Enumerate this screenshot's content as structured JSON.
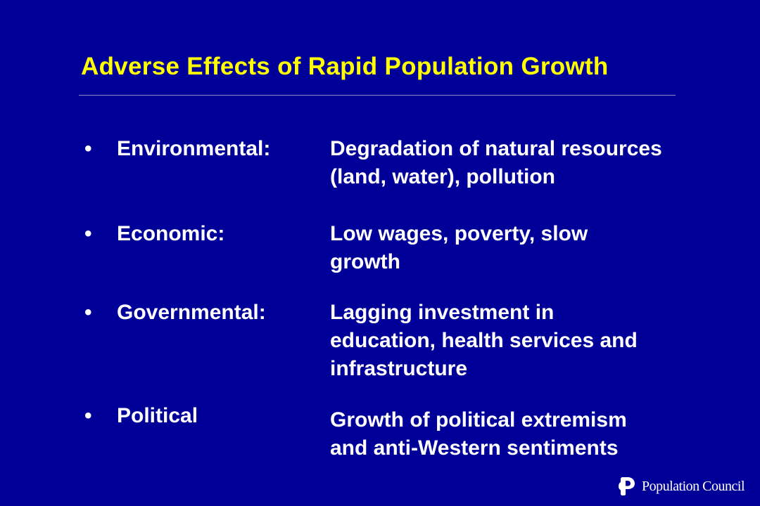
{
  "slide": {
    "title": "Adverse Effects of Rapid Population Growth",
    "bullet_glyph": "•",
    "items": [
      {
        "category": "Environmental:",
        "effect_lines": [
          "Degradation of natural resources",
          "(land, water), pollution"
        ]
      },
      {
        "category": "Economic:",
        "effect_lines": [
          "Low wages, poverty, slow",
          "growth"
        ]
      },
      {
        "category": "Governmental:",
        "effect_lines": [
          "Lagging investment in",
          "education, health services and",
          "infrastructure"
        ]
      },
      {
        "category": "Political",
        "effect_lines": [
          "Growth of political extremism",
          "and anti-Western sentiments"
        ]
      }
    ]
  },
  "logo": {
    "icon": "population-council-logo-icon",
    "text": "Population Council"
  },
  "colors": {
    "background": "#000099",
    "title": "#FFFF00",
    "body_text": "#FFFFFF"
  }
}
